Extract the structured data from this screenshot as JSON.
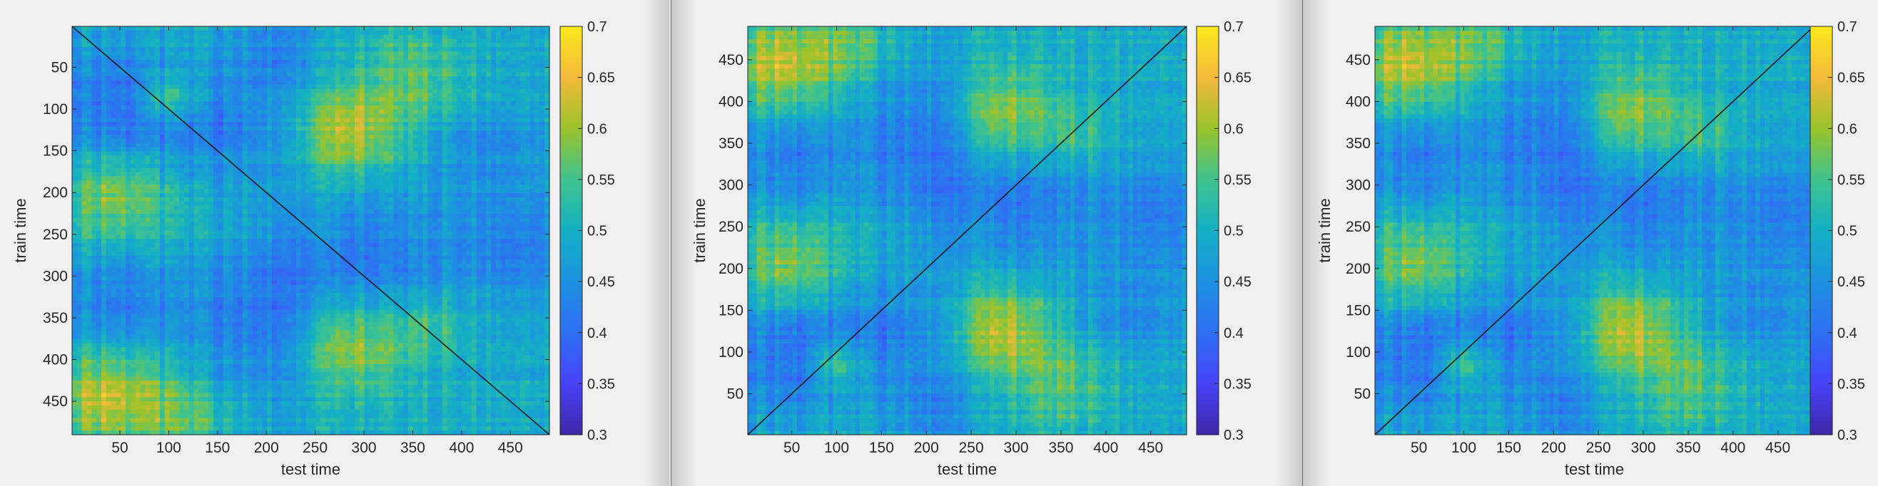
{
  "colorbar": {
    "ticks": [
      "0.3",
      "0.35",
      "0.4",
      "0.45",
      "0.5",
      "0.55",
      "0.6",
      "0.65",
      "0.7"
    ],
    "range": [
      0.3,
      0.7
    ],
    "colormap": [
      "#3e26a8",
      "#4743f8",
      "#2f6ff3",
      "#1d91e0",
      "#14b0c4",
      "#3fc38e",
      "#9ac32b",
      "#f5b93b",
      "#fae91d"
    ]
  },
  "theme": {
    "background": "#f0f0f0",
    "axis_color": "#262626",
    "diagonal_color": "#1a1a1a"
  },
  "chart_data": [
    {
      "type": "heatmap",
      "title": "",
      "xlabel": "test time",
      "ylabel": "train time",
      "x_range": [
        1,
        490
      ],
      "y_range": [
        1,
        490
      ],
      "y_direction": "reverse",
      "xticks": [
        "50",
        "100",
        "150",
        "200",
        "250",
        "300",
        "350",
        "400",
        "450"
      ],
      "yticks": [
        "50",
        "100",
        "150",
        "200",
        "250",
        "300",
        "350",
        "400",
        "450"
      ],
      "diagonal": true,
      "value_range": [
        0.3,
        0.7
      ],
      "pattern_seed": 0
    },
    {
      "type": "heatmap",
      "title": "",
      "xlabel": "test time",
      "ylabel": "train time",
      "x_range": [
        1,
        490
      ],
      "y_range": [
        1,
        490
      ],
      "y_direction": "normal",
      "xticks": [
        "50",
        "100",
        "150",
        "200",
        "250",
        "300",
        "350",
        "400",
        "450"
      ],
      "yticks": [
        "50",
        "100",
        "150",
        "200",
        "250",
        "300",
        "350",
        "400",
        "450"
      ],
      "diagonal": true,
      "value_range": [
        0.3,
        0.7
      ],
      "pattern_seed": 0
    },
    {
      "type": "heatmap",
      "title": "",
      "xlabel": "test time",
      "ylabel": "train time",
      "x_range": [
        1,
        490
      ],
      "y_range": [
        1,
        490
      ],
      "y_direction": "normal",
      "xticks": [
        "50",
        "100",
        "150",
        "200",
        "250",
        "300",
        "350",
        "400",
        "450"
      ],
      "yticks": [
        "50",
        "100",
        "150",
        "200",
        "250",
        "300",
        "350",
        "400",
        "450"
      ],
      "diagonal": true,
      "value_range": [
        0.3,
        0.7
      ],
      "pattern_seed": 0
    }
  ]
}
